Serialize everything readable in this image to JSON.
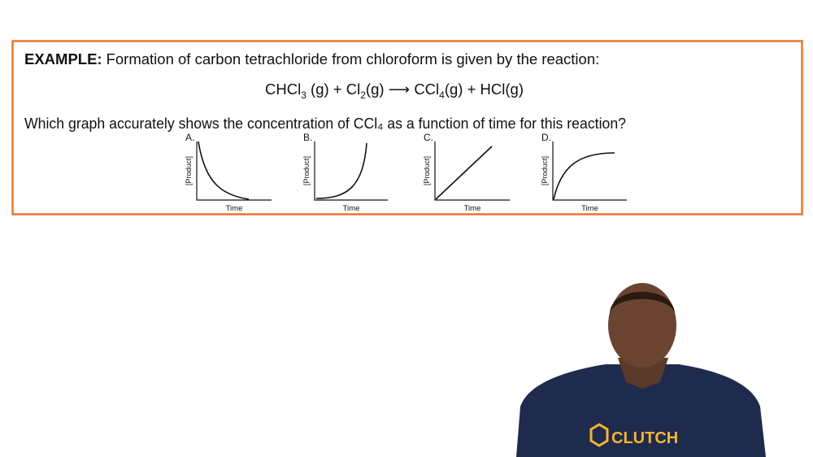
{
  "example": {
    "heading": "EXAMPLE:",
    "intro": "Formation of carbon tetrachloride from chloroform is given by the reaction:",
    "equation": [
      "CHCl",
      "3",
      " (g) + Cl",
      "2",
      "(g) ⟶ CCl",
      "4",
      "(g) + HCl(g)"
    ],
    "question": "Which graph accurately shows the concentration of CCl₄ as a function of time for this reaction?",
    "graphs": [
      {
        "label": "A.",
        "y_label": "[Product]",
        "x_label": "Time"
      },
      {
        "label": "B.",
        "y_label": "[Product]",
        "x_label": "Time"
      },
      {
        "label": "C.",
        "y_label": "[Product]",
        "x_label": "Time"
      },
      {
        "label": "D.",
        "y_label": "[Product]",
        "x_label": "Time"
      }
    ]
  },
  "presenter": {
    "shirt_text": "CLUTCH"
  }
}
